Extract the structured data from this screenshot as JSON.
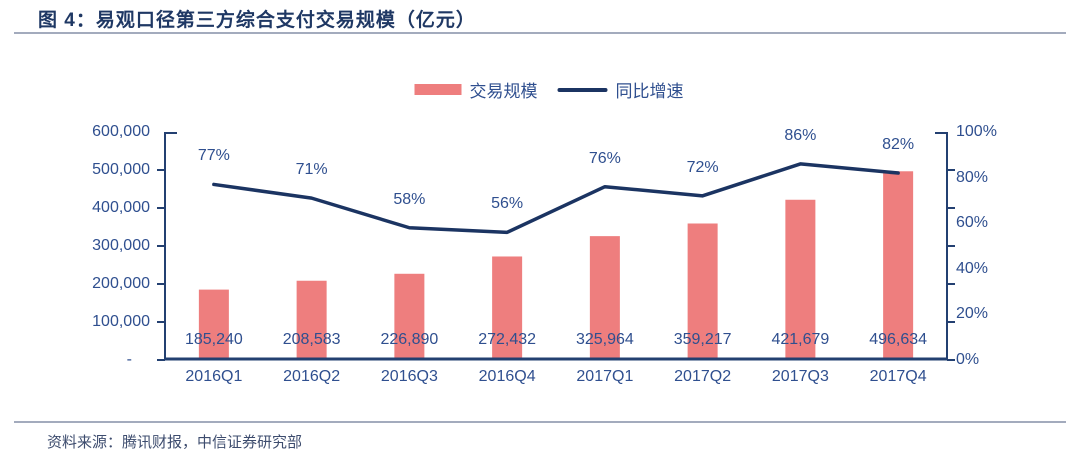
{
  "title": "图 4：易观口径第三方综合支付交易规模（亿元）",
  "legend": {
    "items": [
      {
        "label": "交易规模",
        "marker": "bar"
      },
      {
        "label": "同比增速",
        "marker": "line"
      }
    ]
  },
  "footer": {
    "source": "资料来源：腾讯财报，中信证券研究部"
  },
  "colors": {
    "bar": "#EE7E7E",
    "line": "#1B3462",
    "axis": "#234071",
    "text": "#2F4F8F",
    "title": "#1F3864",
    "rule": "#A3ABBD",
    "footer_text": "#3D4C6E"
  },
  "chart_data": {
    "type": "bar+line",
    "title": "易观口径第三方综合支付交易规模（亿元）",
    "categories": [
      "2016Q1",
      "2016Q2",
      "2016Q3",
      "2016Q4",
      "2017Q1",
      "2017Q2",
      "2017Q3",
      "2017Q4"
    ],
    "series": [
      {
        "name": "交易规模",
        "type": "bar",
        "axis": "left",
        "values": [
          185240,
          208583,
          226890,
          272432,
          325964,
          359217,
          421679,
          496634
        ],
        "value_labels": [
          "185,240",
          "208,583",
          "226,890",
          "272,432",
          "325,964",
          "359,217",
          "421,679",
          "496,634"
        ]
      },
      {
        "name": "同比增速",
        "type": "line",
        "axis": "right",
        "values_pct": [
          77,
          71,
          58,
          56,
          76,
          72,
          86,
          82
        ],
        "point_labels": [
          "77%",
          "71%",
          "58%",
          "56%",
          "76%",
          "72%",
          "86%",
          "82%"
        ]
      }
    ],
    "left_axis": {
      "min": 0,
      "max": 600000,
      "tick_labels": [
        "600,000",
        "500,000",
        "400,000",
        "300,000",
        "200,000",
        "100,000",
        "-"
      ]
    },
    "right_axis": {
      "min_pct": 0,
      "max_pct": 100,
      "tick_labels": [
        "100%",
        "80%",
        "60%",
        "40%",
        "20%",
        "0%"
      ]
    },
    "grid": "off",
    "legend_position": "top-center"
  }
}
